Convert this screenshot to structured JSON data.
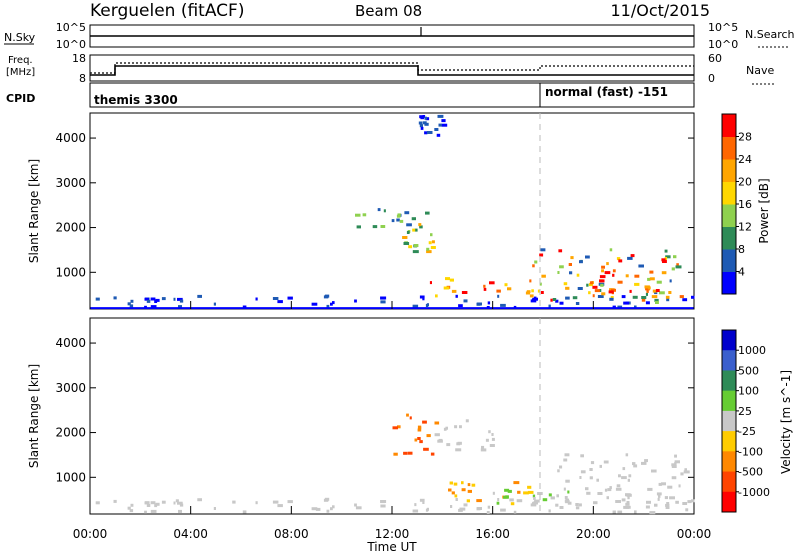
{
  "header": {
    "station": "Kerguelen (fitACF)",
    "beam": "Beam 08",
    "date": "11/Oct/2015"
  },
  "nsky_panel": {
    "left_label": "N.Sky",
    "left_ticks": [
      "10^5",
      "10^0"
    ],
    "right_ticks": [
      "10^5",
      "10^0"
    ],
    "right_label": "N.Search"
  },
  "freq_panel": {
    "left_label_1": "Freq.",
    "left_label_2": "[MHz]",
    "left_ticks": [
      "18",
      "8"
    ],
    "right_ticks": [
      "60",
      "0"
    ],
    "right_label": "Nave"
  },
  "cpid_panel": {
    "label": "CPID",
    "modes": [
      "themis 3300",
      "normal (fast) -151"
    ],
    "mode_change_hour": 18.0
  },
  "colors": {
    "scatter_blue": "#0000ff",
    "power_scale": [
      "#0000ff",
      "#1e5ab4",
      "#2e8b57",
      "#8fd14f",
      "#ffd700",
      "#ffa500",
      "#ff6600",
      "#ff0000"
    ],
    "velocity_scale": [
      "#0000cc",
      "#3a5fcd",
      "#2e8b57",
      "#66cc33",
      "#c8c8c8",
      "#ffcc00",
      "#ff8800",
      "#ff4400",
      "#ff0000"
    ]
  },
  "chart_data": [
    {
      "type": "heatmap",
      "title": "",
      "xlabel": "",
      "ylabel": "Slant Range [km]",
      "ylim": [
        180,
        4560
      ],
      "yticks": [
        1000,
        2000,
        3000,
        4000
      ],
      "xlim": [
        0,
        24
      ],
      "colorbar": {
        "label": "Power [dB]",
        "ticks": [
          "4",
          "8",
          "12",
          "16",
          "20",
          "24",
          "28"
        ]
      },
      "patches": [
        {
          "t0": 0.0,
          "t1": 24.0,
          "r0": 200,
          "r1": 460,
          "value": "4-8"
        },
        {
          "t0": 10.5,
          "t1": 13.5,
          "r0": 2000,
          "r1": 2400,
          "value": "8-16"
        },
        {
          "t0": 12.3,
          "t1": 13.6,
          "r0": 1450,
          "r1": 2100,
          "value": "12-24"
        },
        {
          "t0": 13.0,
          "t1": 14.0,
          "r0": 4050,
          "r1": 4500,
          "value": "4-8"
        },
        {
          "t0": 13.5,
          "t1": 17.5,
          "r0": 450,
          "r1": 850,
          "value": "16-28"
        },
        {
          "t0": 17.5,
          "t1": 23.5,
          "r0": 300,
          "r1": 1500,
          "value": "8-28"
        },
        {
          "t0": 19.8,
          "t1": 22.5,
          "r0": 400,
          "r1": 1000,
          "value": "20-28"
        }
      ]
    },
    {
      "type": "heatmap",
      "title": "",
      "xlabel": "Time UT",
      "ylabel": "Slant Range [km]",
      "ylim": [
        180,
        4560
      ],
      "yticks": [
        1000,
        2000,
        3000,
        4000
      ],
      "xlim": [
        0,
        24
      ],
      "xticks": [
        "00:00",
        "04:00",
        "08:00",
        "12:00",
        "16:00",
        "20:00",
        "00:00"
      ],
      "colorbar": {
        "label": "Velocity [m s^-1]",
        "ticks": [
          "1000",
          "500",
          "100",
          "25",
          "-25",
          "-100",
          "-500",
          "-1000"
        ]
      },
      "patches": [
        {
          "t0": 0.0,
          "t1": 24.0,
          "r0": 200,
          "r1": 500,
          "value": "-25 to 25"
        },
        {
          "t0": 12.0,
          "t1": 13.8,
          "r0": 1500,
          "r1": 2400,
          "value": "-100 to -500"
        },
        {
          "t0": 13.5,
          "t1": 16.0,
          "r0": 1600,
          "r1": 2300,
          "value": "-25 to 25"
        },
        {
          "t0": 14.0,
          "t1": 17.5,
          "r0": 400,
          "r1": 900,
          "value": "-25 to -100"
        },
        {
          "t0": 16.0,
          "t1": 19.0,
          "r0": 400,
          "r1": 700,
          "value": "25 to 100"
        },
        {
          "t0": 18.5,
          "t1": 23.8,
          "r0": 300,
          "r1": 1500,
          "value": "-25 to 25"
        }
      ]
    }
  ]
}
